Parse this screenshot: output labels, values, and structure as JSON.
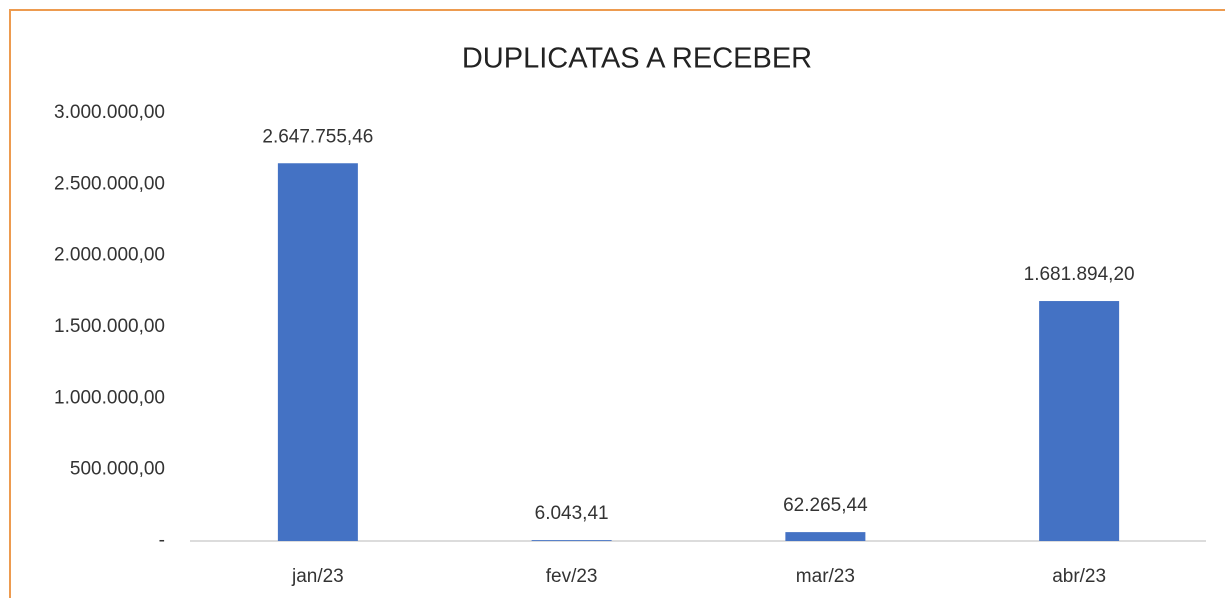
{
  "chart_data": {
    "type": "bar",
    "title": "DUPLICATAS A RECEBER",
    "categories": [
      "jan/23",
      "fev/23",
      "mar/23",
      "abr/23"
    ],
    "values": [
      2647755.46,
      6043.41,
      62265.44,
      1681894.2
    ],
    "value_labels": [
      "2.647.755,46",
      "6.043,41",
      "62.265,44",
      "1.681.894,20"
    ],
    "color": "#4472c4",
    "ylim": [
      0,
      3000000
    ],
    "yticks": [
      {
        "value": 0,
        "label": "-"
      },
      {
        "value": 500000,
        "label": "500.000,00"
      },
      {
        "value": 1000000,
        "label": "1.000.000,00"
      },
      {
        "value": 1500000,
        "label": "1.500.000,00"
      },
      {
        "value": 2000000,
        "label": "2.000.000,00"
      },
      {
        "value": 2500000,
        "label": "2.500.000,00"
      },
      {
        "value": 3000000,
        "label": "3.000.000,00"
      }
    ],
    "grid": false
  }
}
